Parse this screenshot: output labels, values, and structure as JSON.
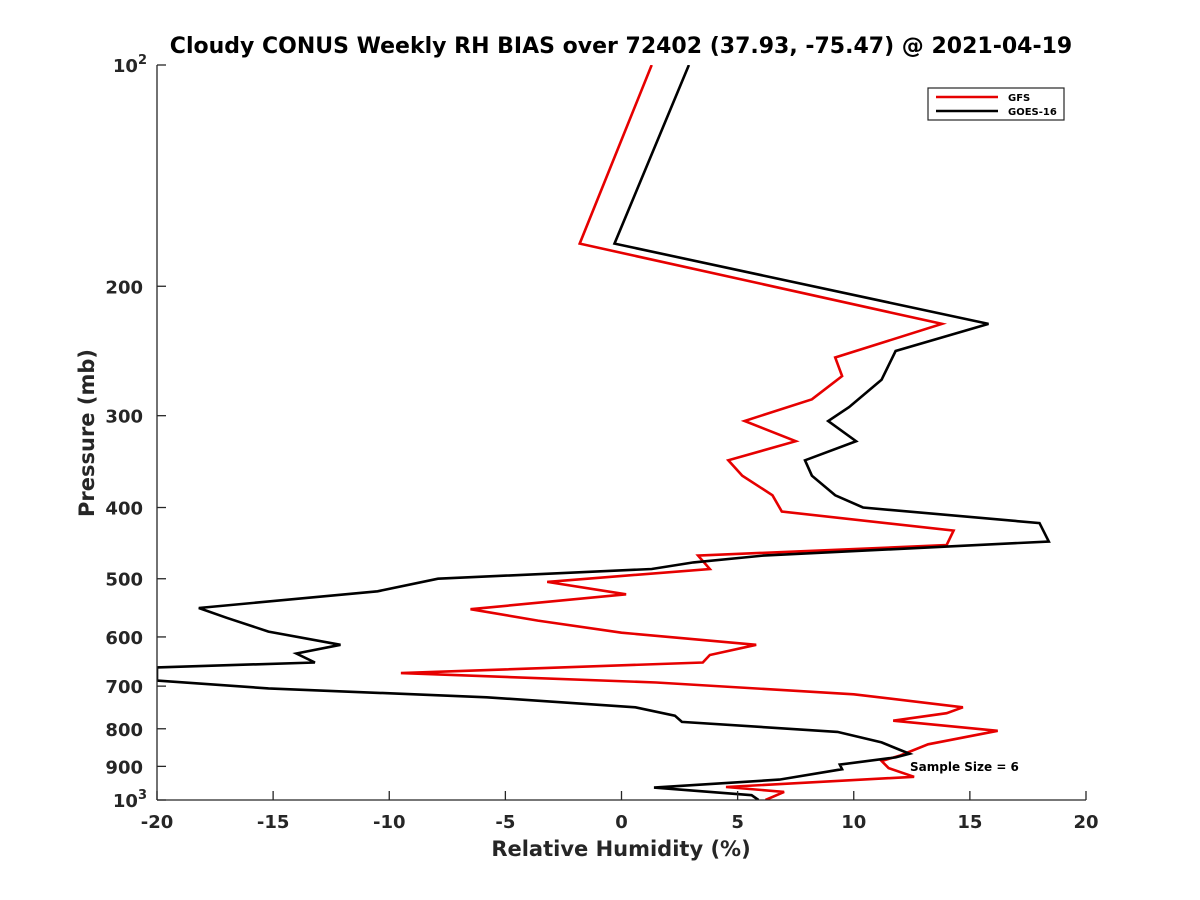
{
  "chart_data": {
    "type": "line",
    "title": "Cloudy CONUS Weekly RH BIAS over 72402 (37.93, -75.47) @ 2021-04-19",
    "xlabel": "Relative Humidity (%)",
    "ylabel": "Pressure (mb)",
    "xlim": [
      -20,
      20
    ],
    "ylim": [
      100,
      1000
    ],
    "y_scale": "log",
    "y_reversed": true,
    "x_ticks": [
      "-20",
      "-15",
      "-10",
      "-5",
      "0",
      "5",
      "10",
      "15",
      "20"
    ],
    "y_ticks": [
      {
        "base": "10",
        "exp": "2"
      },
      {
        "base": "200",
        "exp": ""
      },
      {
        "base": "300",
        "exp": ""
      },
      {
        "base": "400",
        "exp": ""
      },
      {
        "base": "500",
        "exp": ""
      },
      {
        "base": "600",
        "exp": ""
      },
      {
        "base": "700",
        "exp": ""
      },
      {
        "base": "800",
        "exp": ""
      },
      {
        "base": "900",
        "exp": ""
      },
      {
        "base": "10",
        "exp": "3"
      }
    ],
    "grid": false,
    "legend_position": "top-right",
    "annotation": "Sample Size = 6",
    "series": [
      {
        "name": "GFS",
        "color": "#e60000",
        "points": [
          [
            1.3,
            100
          ],
          [
            -1.8,
            175
          ],
          [
            13.8,
            225
          ],
          [
            9.2,
            250
          ],
          [
            9.5,
            265
          ],
          [
            8.2,
            285
          ],
          [
            5.3,
            305
          ],
          [
            7.5,
            325
          ],
          [
            4.6,
            345
          ],
          [
            5.2,
            362
          ],
          [
            6.5,
            385
          ],
          [
            6.9,
            405
          ],
          [
            14.3,
            430
          ],
          [
            14.0,
            450
          ],
          [
            3.3,
            465
          ],
          [
            3.8,
            485
          ],
          [
            -3.2,
            505
          ],
          [
            0.2,
            525
          ],
          [
            -6.5,
            550
          ],
          [
            -3.6,
            570
          ],
          [
            0.0,
            592
          ],
          [
            5.8,
            615
          ],
          [
            3.8,
            635
          ],
          [
            3.5,
            650
          ],
          [
            -9.5,
            672
          ],
          [
            1.5,
            692
          ],
          [
            10.0,
            718
          ],
          [
            14.7,
            748
          ],
          [
            14.0,
            762
          ],
          [
            11.7,
            780
          ],
          [
            16.2,
            805
          ],
          [
            13.2,
            840
          ],
          [
            12.0,
            870
          ],
          [
            11.2,
            885
          ],
          [
            11.5,
            905
          ],
          [
            12.6,
            930
          ],
          [
            4.5,
            960
          ],
          [
            7.0,
            975
          ],
          [
            6.2,
            1000
          ]
        ]
      },
      {
        "name": "GOES-16",
        "color": "#000000",
        "points": [
          [
            2.9,
            100
          ],
          [
            -0.3,
            175
          ],
          [
            15.8,
            225
          ],
          [
            11.8,
            245
          ],
          [
            11.2,
            268
          ],
          [
            9.8,
            292
          ],
          [
            8.9,
            305
          ],
          [
            10.1,
            325
          ],
          [
            7.9,
            345
          ],
          [
            8.2,
            362
          ],
          [
            9.2,
            385
          ],
          [
            10.4,
            400
          ],
          [
            18.0,
            420
          ],
          [
            18.4,
            445
          ],
          [
            6.1,
            465
          ],
          [
            3.1,
            475
          ],
          [
            1.3,
            485
          ],
          [
            -7.9,
            500
          ],
          [
            -10.5,
            520
          ],
          [
            -18.2,
            548
          ],
          [
            -17.0,
            565
          ],
          [
            -15.2,
            590
          ],
          [
            -12.1,
            615
          ],
          [
            -14.0,
            632
          ],
          [
            -13.2,
            650
          ],
          [
            -20.0,
            660
          ],
          [
            -20.0,
            688
          ],
          [
            -15.2,
            705
          ],
          [
            -5.8,
            725
          ],
          [
            0.6,
            748
          ],
          [
            2.3,
            768
          ],
          [
            2.6,
            783
          ],
          [
            9.3,
            808
          ],
          [
            11.2,
            835
          ],
          [
            12.0,
            855
          ],
          [
            12.4,
            865
          ],
          [
            11.8,
            875
          ],
          [
            9.4,
            895
          ],
          [
            9.5,
            908
          ],
          [
            6.8,
            938
          ],
          [
            1.4,
            962
          ],
          [
            5.6,
            985
          ],
          [
            5.9,
            1000
          ]
        ]
      }
    ]
  }
}
